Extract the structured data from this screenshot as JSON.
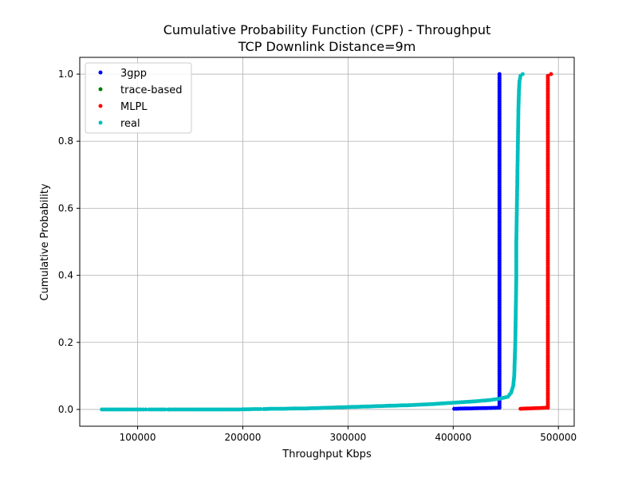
{
  "chart_data": {
    "type": "scatter",
    "title": "Cumulative Probability Function (CPF) - Throughput",
    "subtitle": "TCP Downlink Distance=9m",
    "xlabel": "Throughput Kbps",
    "ylabel": "Cumulative Probability",
    "xlim": [
      45000,
      515000
    ],
    "ylim": [
      -0.05,
      1.05
    ],
    "x_ticks": [
      100000,
      200000,
      300000,
      400000,
      500000
    ],
    "x_tick_labels": [
      "100000",
      "200000",
      "300000",
      "400000",
      "500000"
    ],
    "y_ticks": [
      0.0,
      0.2,
      0.4,
      0.6,
      0.8,
      1.0
    ],
    "y_tick_labels": [
      "0.0",
      "0.2",
      "0.4",
      "0.6",
      "0.8",
      "1.0"
    ],
    "grid": true,
    "legend_position": "top-left",
    "series": [
      {
        "name": "3gpp",
        "color": "#0000ff",
        "points": [
          [
            401000,
            0.002
          ],
          [
            444000,
            0.005
          ],
          [
            444000,
            0.1
          ],
          [
            444000,
            0.2
          ],
          [
            444000,
            0.3
          ],
          [
            444000,
            0.4
          ],
          [
            444000,
            0.5
          ],
          [
            444000,
            0.6
          ],
          [
            444000,
            0.7
          ],
          [
            444000,
            0.8
          ],
          [
            444000,
            0.9
          ],
          [
            444000,
            1.0
          ]
        ]
      },
      {
        "name": "trace-based",
        "color": "#008000",
        "points": []
      },
      {
        "name": "MLPL",
        "color": "#ff0000",
        "points": [
          [
            464000,
            0.002
          ],
          [
            490000,
            0.005
          ],
          [
            490000,
            0.1
          ],
          [
            490000,
            0.2
          ],
          [
            490000,
            0.3
          ],
          [
            490000,
            0.4
          ],
          [
            490000,
            0.5
          ],
          [
            490000,
            0.6
          ],
          [
            490000,
            0.7
          ],
          [
            490000,
            0.8
          ],
          [
            490000,
            0.9
          ],
          [
            490000,
            0.995
          ],
          [
            493000,
            1.0
          ]
        ]
      },
      {
        "name": "real",
        "color": "#00bfbf",
        "points": [
          [
            66000,
            0.0
          ],
          [
            70000,
            0.0
          ],
          [
            78000,
            0.0
          ],
          [
            88000,
            0.0
          ],
          [
            103000,
            0.0
          ],
          [
            108000,
            0.0
          ],
          [
            111000,
            0.0
          ],
          [
            122000,
            0.0
          ],
          [
            126000,
            0.0
          ],
          [
            129000,
            0.0
          ],
          [
            130000,
            0.0
          ],
          [
            173000,
            0.0
          ],
          [
            183000,
            0.0
          ],
          [
            197000,
            0.0
          ],
          [
            210000,
            0.001
          ],
          [
            217000,
            0.001
          ],
          [
            220000,
            0.001
          ],
          [
            226000,
            0.002
          ],
          [
            232000,
            0.002
          ],
          [
            240000,
            0.002
          ],
          [
            250000,
            0.003
          ],
          [
            260000,
            0.003
          ],
          [
            270000,
            0.004
          ],
          [
            280000,
            0.005
          ],
          [
            290000,
            0.006
          ],
          [
            300000,
            0.007
          ],
          [
            320000,
            0.009
          ],
          [
            340000,
            0.011
          ],
          [
            360000,
            0.013
          ],
          [
            380000,
            0.016
          ],
          [
            400000,
            0.02
          ],
          [
            420000,
            0.024
          ],
          [
            435000,
            0.028
          ],
          [
            444000,
            0.032
          ],
          [
            452000,
            0.038
          ],
          [
            455000,
            0.05
          ],
          [
            457000,
            0.07
          ],
          [
            458000,
            0.1
          ],
          [
            459000,
            0.2
          ],
          [
            459500,
            0.3
          ],
          [
            460000,
            0.4
          ],
          [
            460000,
            0.5
          ],
          [
            460500,
            0.6
          ],
          [
            461000,
            0.7
          ],
          [
            461500,
            0.8
          ],
          [
            462000,
            0.9
          ],
          [
            462500,
            0.95
          ],
          [
            463000,
            0.98
          ],
          [
            464000,
            0.995
          ],
          [
            466000,
            1.0
          ]
        ]
      }
    ]
  }
}
